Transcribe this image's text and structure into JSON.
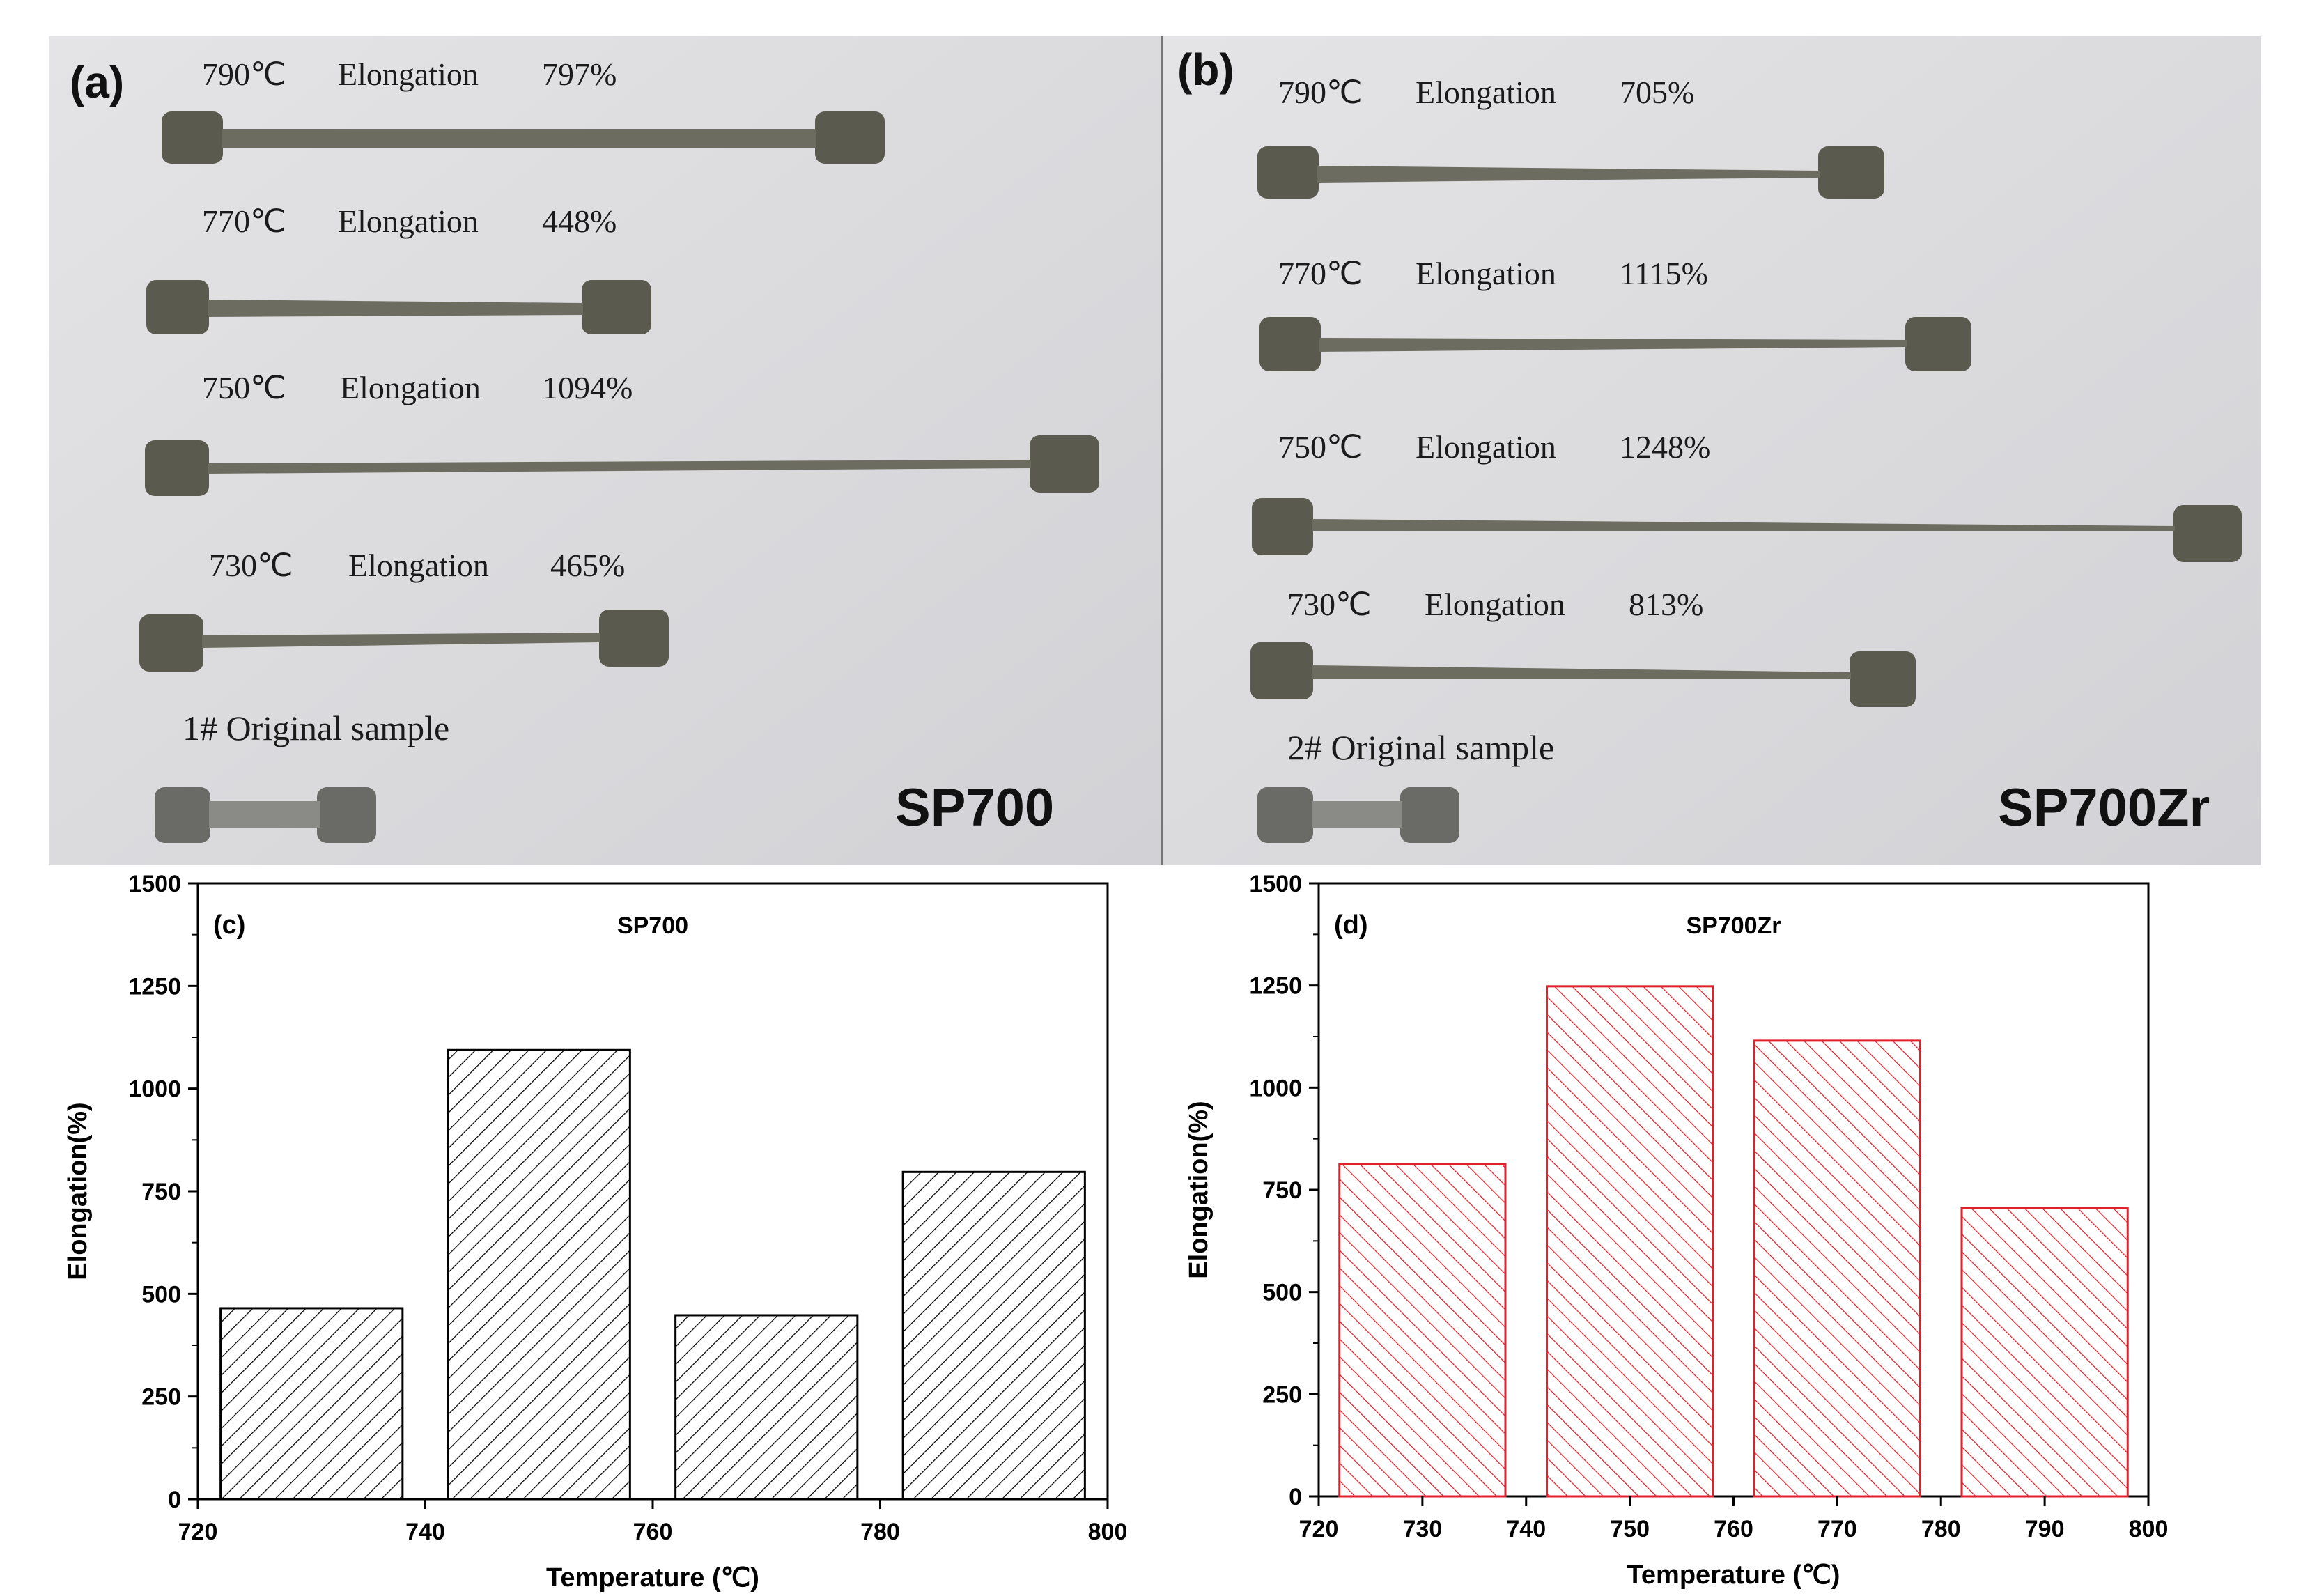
{
  "photos": [
    {
      "label": "(a)",
      "sample_name": "SP700",
      "specimens": [
        {
          "temp": "790℃",
          "elongation_label": "Elongation",
          "value": "797%"
        },
        {
          "temp": "770℃",
          "elongation_label": "Elongation",
          "value": "448%"
        },
        {
          "temp": "750℃",
          "elongation_label": "Elongation",
          "value": "1094%"
        },
        {
          "temp": "730℃",
          "elongation_label": "Elongation",
          "value": "465%"
        }
      ],
      "original_label": "1# Original sample"
    },
    {
      "label": "(b)",
      "sample_name": "SP700Zr",
      "specimens": [
        {
          "temp": "790℃",
          "elongation_label": "Elongation",
          "value": "705%"
        },
        {
          "temp": "770℃",
          "elongation_label": "Elongation",
          "value": "1115%"
        },
        {
          "temp": "750℃",
          "elongation_label": "Elongation",
          "value": "1248%"
        },
        {
          "temp": "730℃",
          "elongation_label": "Elongation",
          "value": "813%"
        }
      ],
      "original_label": "2# Original sample"
    }
  ],
  "colors": {
    "photo_background": "#dcdcde",
    "specimen_metal": "#5a5a4e",
    "bar_c": "#000000",
    "bar_d": "#e0202a"
  },
  "chart_data": [
    {
      "type": "bar",
      "panel_label": "(c)",
      "title": "SP700",
      "xlabel": "Temperature (℃)",
      "ylabel": "Elongation(%)",
      "x": [
        730,
        750,
        770,
        790
      ],
      "values": [
        465,
        1094,
        448,
        797
      ],
      "xlim": [
        720,
        800
      ],
      "ylim": [
        0,
        1500
      ],
      "xticks": [
        720,
        740,
        760,
        780,
        800
      ],
      "yticks": [
        0,
        250,
        500,
        750,
        1000,
        1250,
        1500
      ],
      "fill": "diagonal hatch, black"
    },
    {
      "type": "bar",
      "panel_label": "(d)",
      "title": "SP700Zr",
      "xlabel": "Temperature (℃)",
      "ylabel": "Elongation(%)",
      "x": [
        730,
        750,
        770,
        790
      ],
      "values": [
        813,
        1248,
        1115,
        705
      ],
      "xlim": [
        720,
        800
      ],
      "ylim": [
        0,
        1500
      ],
      "xticks": [
        720,
        730,
        740,
        750,
        760,
        770,
        780,
        790,
        800
      ],
      "yticks": [
        0,
        250,
        500,
        750,
        1000,
        1250,
        1500
      ],
      "fill": "diagonal hatch, red"
    }
  ]
}
